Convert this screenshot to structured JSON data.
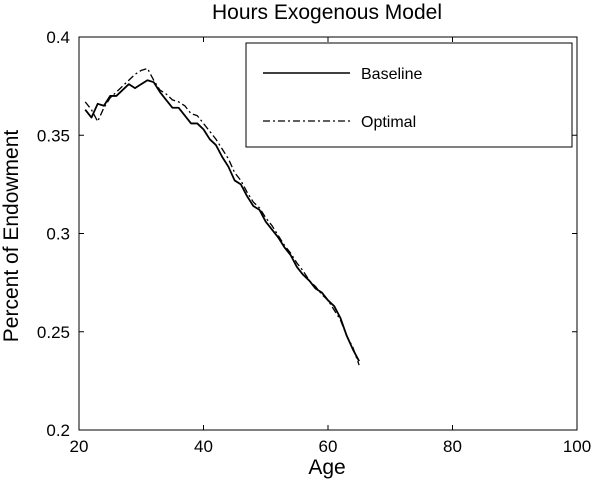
{
  "chart_data": {
    "type": "line",
    "title": "Hours Exogenous Model",
    "xlabel": "Age",
    "ylabel": "Percent of Endowment",
    "xlim": [
      20,
      100
    ],
    "ylim": [
      0.2,
      0.4
    ],
    "xticks": [
      20,
      40,
      60,
      80,
      100
    ],
    "xtick_labels": [
      "20",
      "40",
      "60",
      "80",
      "100"
    ],
    "yticks": [
      0.2,
      0.25,
      0.3,
      0.35,
      0.4
    ],
    "ytick_labels": [
      "0.2",
      "0.25",
      "0.3",
      "0.35",
      "0.4"
    ],
    "grid": false,
    "legend_position": "top-right",
    "series": [
      {
        "name": "Baseline",
        "line_style": "solid",
        "color": "#000000",
        "x": [
          21,
          22,
          23,
          24,
          25,
          26,
          27,
          28,
          29,
          30,
          31,
          32,
          33,
          34,
          35,
          36,
          37,
          38,
          39,
          40,
          41,
          42,
          43,
          44,
          45,
          46,
          47,
          48,
          49,
          50,
          51,
          52,
          53,
          54,
          55,
          56,
          57,
          58,
          59,
          60,
          61,
          62,
          63,
          64,
          65
        ],
        "y": [
          0.363,
          0.359,
          0.366,
          0.365,
          0.37,
          0.37,
          0.373,
          0.376,
          0.374,
          0.376,
          0.378,
          0.377,
          0.372,
          0.368,
          0.364,
          0.364,
          0.36,
          0.356,
          0.356,
          0.353,
          0.348,
          0.345,
          0.339,
          0.334,
          0.327,
          0.325,
          0.319,
          0.314,
          0.312,
          0.306,
          0.302,
          0.298,
          0.293,
          0.289,
          0.283,
          0.279,
          0.276,
          0.272,
          0.27,
          0.266,
          0.263,
          0.257,
          0.248,
          0.241,
          0.235
        ]
      },
      {
        "name": "Optimal",
        "line_style": "dashdot",
        "color": "#000000",
        "x": [
          21,
          22,
          23,
          24,
          25,
          26,
          27,
          28,
          29,
          30,
          31,
          32,
          33,
          34,
          35,
          36,
          37,
          38,
          39,
          40,
          41,
          42,
          43,
          44,
          45,
          46,
          47,
          48,
          49,
          50,
          51,
          52,
          53,
          54,
          55,
          56,
          57,
          58,
          59,
          60,
          61,
          62,
          63,
          64,
          65
        ],
        "y": [
          0.367,
          0.363,
          0.357,
          0.364,
          0.369,
          0.372,
          0.375,
          0.378,
          0.381,
          0.383,
          0.384,
          0.378,
          0.373,
          0.371,
          0.368,
          0.367,
          0.365,
          0.361,
          0.36,
          0.356,
          0.352,
          0.348,
          0.343,
          0.338,
          0.331,
          0.327,
          0.321,
          0.316,
          0.313,
          0.308,
          0.304,
          0.299,
          0.294,
          0.29,
          0.285,
          0.281,
          0.276,
          0.273,
          0.269,
          0.266,
          0.261,
          0.256,
          0.248,
          0.242,
          0.233
        ]
      }
    ]
  }
}
